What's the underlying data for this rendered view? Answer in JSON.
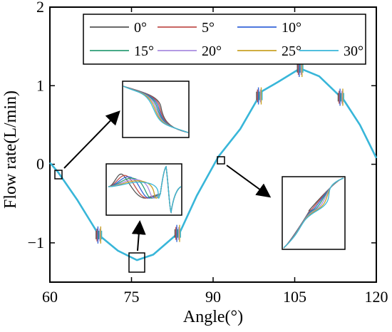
{
  "chart_data": {
    "type": "line",
    "xlabel": "Angle(°)",
    "ylabel": "Flow rate(L/min)",
    "xlim": [
      60,
      120
    ],
    "ylim": [
      -1.5,
      2
    ],
    "xticks": [
      60,
      75,
      90,
      105,
      120
    ],
    "yticks": [
      -1,
      0,
      1,
      2
    ],
    "legend_position": "top-right",
    "main_curve_points": [
      [
        60,
        0.02
      ],
      [
        61.5,
        -0.1
      ],
      [
        65,
        -0.45
      ],
      [
        69,
        -0.9
      ],
      [
        72.5,
        -1.1
      ],
      [
        76,
        -1.22
      ],
      [
        79,
        -1.15
      ],
      [
        81.5,
        -1.0
      ],
      [
        84,
        -0.85
      ],
      [
        87,
        -0.4
      ],
      [
        91,
        0.1
      ],
      [
        95,
        0.45
      ],
      [
        99,
        0.93
      ],
      [
        102,
        1.05
      ],
      [
        106,
        1.22
      ],
      [
        109.5,
        1.12
      ],
      [
        114,
        0.82
      ],
      [
        117,
        0.5
      ],
      [
        120,
        0.08
      ]
    ],
    "series": [
      {
        "name": "0°",
        "color": "#555555"
      },
      {
        "name": "5°",
        "color": "#c0504d"
      },
      {
        "name": "10°",
        "color": "#3465d8"
      },
      {
        "name": "15°",
        "color": "#2e9e77"
      },
      {
        "name": "20°",
        "color": "#a98be0"
      },
      {
        "name": "25°",
        "color": "#c9a227"
      },
      {
        "name": "30°",
        "color": "#38b6d9"
      }
    ],
    "spikes": [
      69,
      83.5,
      98.5,
      106,
      113.5
    ]
  }
}
